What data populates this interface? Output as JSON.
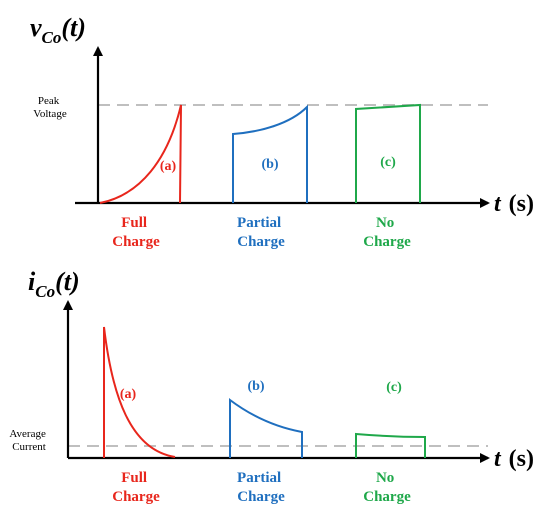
{
  "colors": {
    "axis": "#000000",
    "dashed": "#bfbfbf",
    "full": "#e8261c",
    "partial": "#1f6fbf",
    "none": "#1fa84a"
  },
  "top": {
    "title_main": "v",
    "title_sub": "Co",
    "title_arg": "(t)",
    "reference_line": [
      "Peak",
      "Voltage"
    ],
    "xaxis_t": "t",
    "xaxis_unit": "(s)",
    "cases": [
      {
        "tag": "(a)",
        "caption": [
          "Full",
          "Charge"
        ]
      },
      {
        "tag": "(b)",
        "caption": [
          "Partial",
          "Charge"
        ]
      },
      {
        "tag": "(c)",
        "caption": [
          "No",
          "Charge"
        ]
      }
    ]
  },
  "bottom": {
    "title_main": "i",
    "title_sub": "Co",
    "title_arg": "(t)",
    "reference_line": [
      "Average",
      "Current"
    ],
    "xaxis_t": "t",
    "xaxis_unit": "(s)",
    "cases": [
      {
        "tag": "(a)",
        "caption": [
          "Full",
          "Charge"
        ]
      },
      {
        "tag": "(b)",
        "caption": [
          "Partial",
          "Charge"
        ]
      },
      {
        "tag": "(c)",
        "caption": [
          "No",
          "Charge"
        ]
      }
    ]
  }
}
